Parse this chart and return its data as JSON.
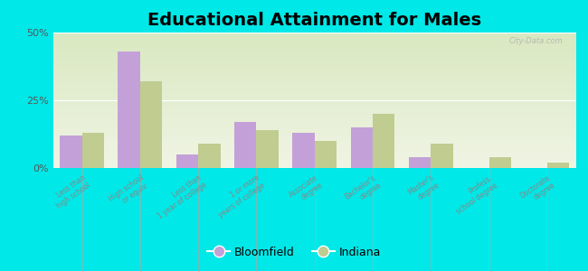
{
  "title": "Educational Attainment for Males",
  "categories": [
    "Less than\nhigh school",
    "High school\nor equiv.",
    "Less than\n1 year of college",
    "1 or more\nyears of college",
    "Associate\ndegree",
    "Bachelor's\ndegree",
    "Master's\ndegree",
    "Profess.\nschool degree",
    "Doctorate\ndegree"
  ],
  "bloomfield": [
    12.0,
    43.0,
    5.0,
    17.0,
    13.0,
    15.0,
    4.0,
    0.0,
    0.0
  ],
  "indiana": [
    13.0,
    32.0,
    9.0,
    14.0,
    10.0,
    20.0,
    9.0,
    4.0,
    2.0
  ],
  "bloomfield_color": "#c4a0d8",
  "indiana_color": "#c0cc90",
  "background_outer": "#00e8e8",
  "background_plot_top": "#d8e8c0",
  "background_plot_bottom": "#f0f4e4",
  "ylim_min": 0,
  "ylim_max": 50,
  "yticks": [
    0,
    25,
    50
  ],
  "ytick_labels": [
    "0%",
    "25%",
    "50%"
  ],
  "bar_width": 0.38,
  "title_fontsize": 14,
  "legend_labels": [
    "Bloomfield",
    "Indiana"
  ],
  "watermark": "City-Data.com"
}
